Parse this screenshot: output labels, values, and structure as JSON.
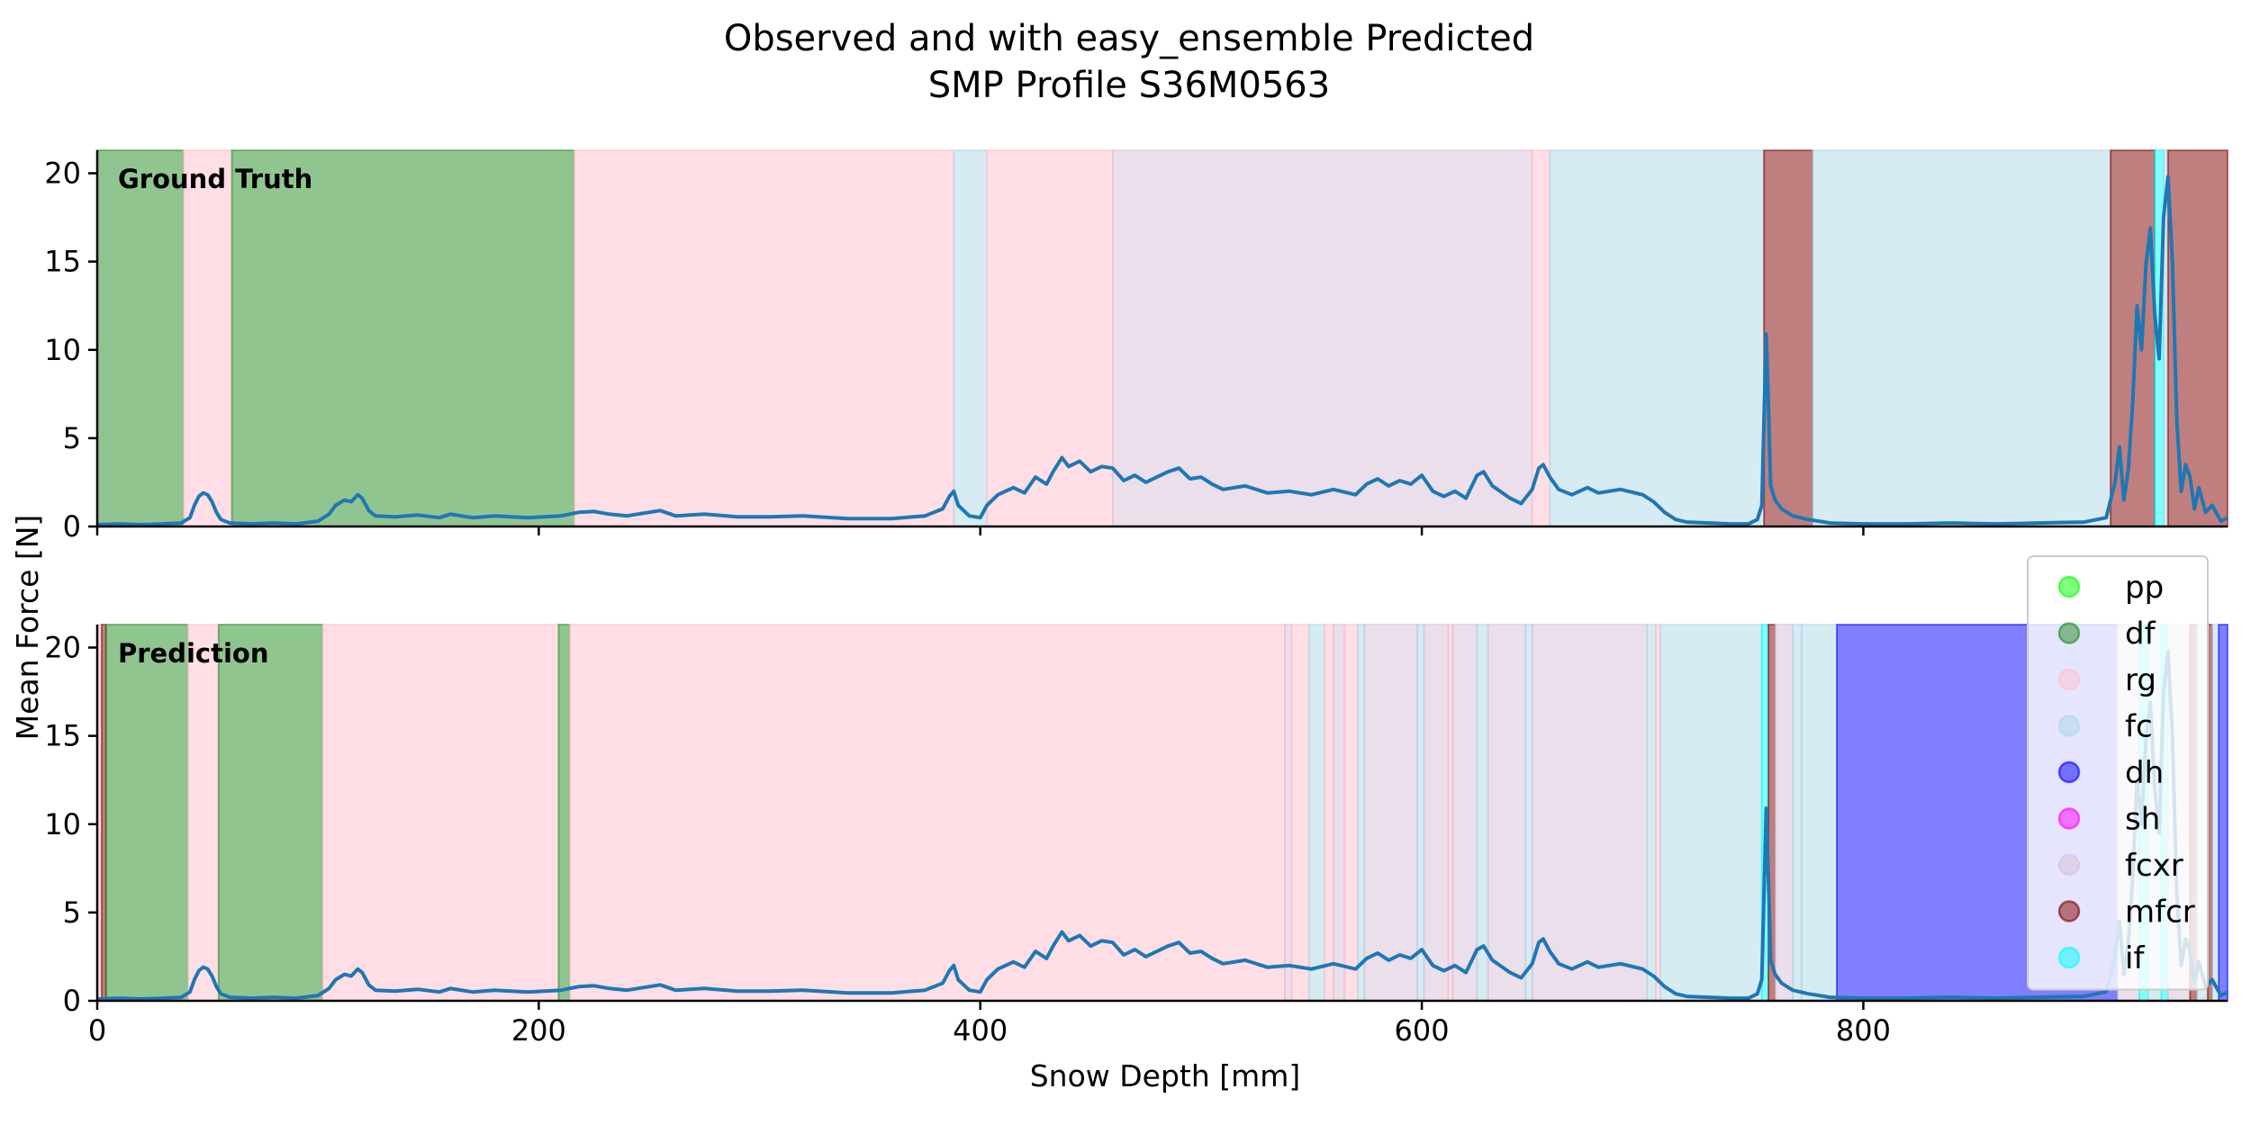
{
  "chart_data": {
    "type": "area",
    "title": "Observed and with easy_ensemble Predicted",
    "subtitle": "SMP Profile S36M0563",
    "xlabel": "Snow Depth [mm]",
    "ylabel": "Mean Force [N]",
    "xlim": [
      0,
      965
    ],
    "ylim": [
      0,
      21.3
    ],
    "xticks": [
      0,
      200,
      400,
      600,
      800
    ],
    "yticks": [
      0,
      5,
      10,
      15,
      20
    ],
    "grid": false,
    "legend": {
      "placement": "right",
      "entries": [
        {
          "label": "pp",
          "color": "#00ff00"
        },
        {
          "label": "df",
          "color": "#228b22"
        },
        {
          "label": "rg",
          "color": "#ffc0cb"
        },
        {
          "label": "fc",
          "color": "#add8e6"
        },
        {
          "label": "dh",
          "color": "#0000ff"
        },
        {
          "label": "sh",
          "color": "#ff00ff"
        },
        {
          "label": "fcxr",
          "color": "#d8bfd8"
        },
        {
          "label": "mfcr",
          "color": "#800000"
        },
        {
          "label": "if",
          "color": "#00ffff"
        }
      ]
    },
    "signal": {
      "color": "#1f77b4",
      "points": [
        [
          0,
          0.1
        ],
        [
          10,
          0.15
        ],
        [
          20,
          0.1
        ],
        [
          30,
          0.15
        ],
        [
          38,
          0.2
        ],
        [
          42,
          0.5
        ],
        [
          44,
          1.2
        ],
        [
          46,
          1.7
        ],
        [
          48,
          1.9
        ],
        [
          50,
          1.8
        ],
        [
          52,
          1.4
        ],
        [
          54,
          0.8
        ],
        [
          56,
          0.4
        ],
        [
          60,
          0.2
        ],
        [
          70,
          0.15
        ],
        [
          80,
          0.2
        ],
        [
          90,
          0.15
        ],
        [
          100,
          0.3
        ],
        [
          105,
          0.7
        ],
        [
          108,
          1.2
        ],
        [
          112,
          1.5
        ],
        [
          115,
          1.4
        ],
        [
          118,
          1.8
        ],
        [
          120,
          1.6
        ],
        [
          123,
          0.9
        ],
        [
          126,
          0.6
        ],
        [
          135,
          0.55
        ],
        [
          145,
          0.65
        ],
        [
          155,
          0.5
        ],
        [
          160,
          0.7
        ],
        [
          170,
          0.5
        ],
        [
          180,
          0.6
        ],
        [
          195,
          0.5
        ],
        [
          210,
          0.6
        ],
        [
          218,
          0.8
        ],
        [
          225,
          0.85
        ],
        [
          232,
          0.7
        ],
        [
          240,
          0.6
        ],
        [
          255,
          0.9
        ],
        [
          262,
          0.6
        ],
        [
          275,
          0.7
        ],
        [
          290,
          0.55
        ],
        [
          305,
          0.55
        ],
        [
          320,
          0.6
        ],
        [
          340,
          0.45
        ],
        [
          360,
          0.45
        ],
        [
          375,
          0.6
        ],
        [
          383,
          1.0
        ],
        [
          386,
          1.7
        ],
        [
          388,
          2.0
        ],
        [
          390,
          1.2
        ],
        [
          395,
          0.6
        ],
        [
          400,
          0.5
        ],
        [
          403,
          1.2
        ],
        [
          408,
          1.8
        ],
        [
          415,
          2.2
        ],
        [
          420,
          1.9
        ],
        [
          425,
          2.8
        ],
        [
          430,
          2.4
        ],
        [
          433,
          3.1
        ],
        [
          437,
          3.9
        ],
        [
          440,
          3.4
        ],
        [
          445,
          3.7
        ],
        [
          450,
          3.1
        ],
        [
          455,
          3.4
        ],
        [
          460,
          3.3
        ],
        [
          465,
          2.6
        ],
        [
          470,
          2.9
        ],
        [
          475,
          2.5
        ],
        [
          480,
          2.8
        ],
        [
          485,
          3.1
        ],
        [
          490,
          3.3
        ],
        [
          495,
          2.7
        ],
        [
          500,
          2.8
        ],
        [
          505,
          2.4
        ],
        [
          510,
          2.1
        ],
        [
          520,
          2.3
        ],
        [
          530,
          1.9
        ],
        [
          540,
          2.0
        ],
        [
          550,
          1.8
        ],
        [
          560,
          2.1
        ],
        [
          570,
          1.8
        ],
        [
          575,
          2.4
        ],
        [
          580,
          2.7
        ],
        [
          585,
          2.3
        ],
        [
          590,
          2.6
        ],
        [
          595,
          2.4
        ],
        [
          600,
          2.9
        ],
        [
          605,
          2.0
        ],
        [
          610,
          1.7
        ],
        [
          615,
          2.0
        ],
        [
          620,
          1.6
        ],
        [
          625,
          2.9
        ],
        [
          628,
          3.1
        ],
        [
          632,
          2.3
        ],
        [
          640,
          1.6
        ],
        [
          645,
          1.3
        ],
        [
          650,
          2.1
        ],
        [
          653,
          3.3
        ],
        [
          655,
          3.5
        ],
        [
          658,
          2.8
        ],
        [
          662,
          2.1
        ],
        [
          668,
          1.8
        ],
        [
          675,
          2.2
        ],
        [
          680,
          1.9
        ],
        [
          690,
          2.1
        ],
        [
          700,
          1.8
        ],
        [
          705,
          1.4
        ],
        [
          710,
          0.8
        ],
        [
          715,
          0.4
        ],
        [
          720,
          0.25
        ],
        [
          730,
          0.2
        ],
        [
          740,
          0.15
        ],
        [
          748,
          0.15
        ],
        [
          752,
          0.4
        ],
        [
          754,
          1.2
        ],
        [
          755,
          6.0
        ],
        [
          756,
          10.9
        ],
        [
          757,
          7.0
        ],
        [
          758,
          2.3
        ],
        [
          760,
          1.5
        ],
        [
          763,
          1.0
        ],
        [
          768,
          0.6
        ],
        [
          775,
          0.4
        ],
        [
          785,
          0.2
        ],
        [
          800,
          0.15
        ],
        [
          820,
          0.15
        ],
        [
          840,
          0.2
        ],
        [
          860,
          0.15
        ],
        [
          880,
          0.2
        ],
        [
          900,
          0.25
        ],
        [
          910,
          0.5
        ],
        [
          914,
          2.5
        ],
        [
          916,
          4.5
        ],
        [
          918,
          1.5
        ],
        [
          920,
          3.2
        ],
        [
          922,
          7.0
        ],
        [
          924,
          12.5
        ],
        [
          926,
          10.0
        ],
        [
          928,
          14.8
        ],
        [
          930,
          16.9
        ],
        [
          932,
          12.0
        ],
        [
          934,
          9.5
        ],
        [
          936,
          17.5
        ],
        [
          938,
          19.8
        ],
        [
          940,
          15.0
        ],
        [
          942,
          6.0
        ],
        [
          944,
          2.0
        ],
        [
          946,
          3.5
        ],
        [
          948,
          2.8
        ],
        [
          950,
          1.0
        ],
        [
          952,
          2.2
        ],
        [
          955,
          0.8
        ],
        [
          958,
          1.2
        ],
        [
          962,
          0.3
        ],
        [
          965,
          0.5
        ]
      ]
    },
    "panels": [
      {
        "label": "Ground Truth",
        "layers": [
          {
            "x0": 0,
            "x1": 39,
            "cls": "df"
          },
          {
            "x0": 39,
            "x1": 61,
            "cls": "rg"
          },
          {
            "x0": 61,
            "x1": 216,
            "cls": "df"
          },
          {
            "x0": 216,
            "x1": 388,
            "cls": "rg"
          },
          {
            "x0": 388,
            "x1": 403,
            "cls": "fc"
          },
          {
            "x0": 403,
            "x1": 460,
            "cls": "rg"
          },
          {
            "x0": 460,
            "x1": 650,
            "cls": "fcxr"
          },
          {
            "x0": 650,
            "x1": 658,
            "cls": "rg"
          },
          {
            "x0": 658,
            "x1": 755,
            "cls": "fc"
          },
          {
            "x0": 755,
            "x1": 777,
            "cls": "mfcr"
          },
          {
            "x0": 777,
            "x1": 912,
            "cls": "fc"
          },
          {
            "x0": 912,
            "x1": 932,
            "cls": "mfcr"
          },
          {
            "x0": 932,
            "x1": 936,
            "cls": "if"
          },
          {
            "x0": 936,
            "x1": 938,
            "cls": "fc"
          },
          {
            "x0": 938,
            "x1": 965,
            "cls": "mfcr"
          }
        ]
      },
      {
        "label": "Prediction",
        "layers": [
          {
            "x0": 0,
            "x1": 2,
            "cls": "rg"
          },
          {
            "x0": 2,
            "x1": 4,
            "cls": "mfcr"
          },
          {
            "x0": 4,
            "x1": 41,
            "cls": "df"
          },
          {
            "x0": 41,
            "x1": 55,
            "cls": "rg"
          },
          {
            "x0": 55,
            "x1": 102,
            "cls": "df"
          },
          {
            "x0": 102,
            "x1": 209,
            "cls": "rg"
          },
          {
            "x0": 209,
            "x1": 214,
            "cls": "df"
          },
          {
            "x0": 214,
            "x1": 538,
            "cls": "rg"
          },
          {
            "x0": 538,
            "x1": 541,
            "cls": "fcxr"
          },
          {
            "x0": 541,
            "x1": 549,
            "cls": "rg"
          },
          {
            "x0": 549,
            "x1": 556,
            "cls": "fc"
          },
          {
            "x0": 556,
            "x1": 560,
            "cls": "rg"
          },
          {
            "x0": 560,
            "x1": 565,
            "cls": "fcxr"
          },
          {
            "x0": 565,
            "x1": 571,
            "cls": "rg"
          },
          {
            "x0": 571,
            "x1": 574,
            "cls": "fc"
          },
          {
            "x0": 574,
            "x1": 598,
            "cls": "fcxr"
          },
          {
            "x0": 598,
            "x1": 601,
            "cls": "fc"
          },
          {
            "x0": 601,
            "x1": 612,
            "cls": "fcxr"
          },
          {
            "x0": 612,
            "x1": 614,
            "cls": "rg"
          },
          {
            "x0": 614,
            "x1": 625,
            "cls": "fcxr"
          },
          {
            "x0": 625,
            "x1": 630,
            "cls": "fc"
          },
          {
            "x0": 630,
            "x1": 647,
            "cls": "fcxr"
          },
          {
            "x0": 647,
            "x1": 650,
            "cls": "fc"
          },
          {
            "x0": 650,
            "x1": 702,
            "cls": "fcxr"
          },
          {
            "x0": 702,
            "x1": 706,
            "cls": "fc"
          },
          {
            "x0": 706,
            "x1": 708,
            "cls": "rg"
          },
          {
            "x0": 708,
            "x1": 754,
            "cls": "fc"
          },
          {
            "x0": 754,
            "x1": 757,
            "cls": "if"
          },
          {
            "x0": 757,
            "x1": 760,
            "cls": "mfcr"
          },
          {
            "x0": 760,
            "x1": 768,
            "cls": "fcxr"
          },
          {
            "x0": 768,
            "x1": 772,
            "cls": "fc"
          },
          {
            "x0": 772,
            "x1": 788,
            "cls": "fc"
          },
          {
            "x0": 788,
            "x1": 915,
            "cls": "dh"
          },
          {
            "x0": 915,
            "x1": 925,
            "cls": "fcxr"
          },
          {
            "x0": 925,
            "x1": 929,
            "cls": "if"
          },
          {
            "x0": 929,
            "x1": 935,
            "cls": "fc"
          },
          {
            "x0": 935,
            "x1": 938,
            "cls": "if"
          },
          {
            "x0": 938,
            "x1": 948,
            "cls": "fcxr"
          },
          {
            "x0": 948,
            "x1": 951,
            "cls": "mfcr"
          },
          {
            "x0": 951,
            "x1": 956,
            "cls": "fc"
          },
          {
            "x0": 956,
            "x1": 958,
            "cls": "mfcr"
          },
          {
            "x0": 958,
            "x1": 961,
            "cls": "fc"
          },
          {
            "x0": 961,
            "x1": 965,
            "cls": "dh"
          }
        ]
      }
    ]
  }
}
